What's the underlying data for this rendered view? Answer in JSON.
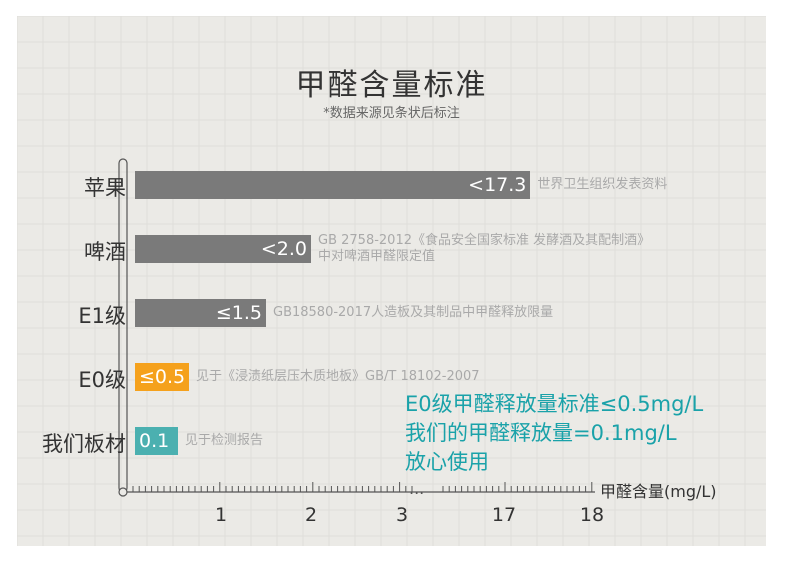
{
  "title": "甲醛含量标准",
  "subtitle": "*数据来源见条状后标注",
  "chart_data": {
    "type": "bar",
    "orientation": "horizontal",
    "categories": [
      "苹果",
      "啤酒",
      "E1级",
      "E0级",
      "我们板材"
    ],
    "values": [
      17.3,
      2.0,
      1.5,
      0.5,
      0.1
    ],
    "value_labels": [
      "<17.3",
      "<2.0",
      "≤1.5",
      "≤0.5",
      "0.1"
    ],
    "notes": [
      [
        "世界卫生组织发表资料"
      ],
      [
        "GB 2758-2012《食品安全国家标准 发酵酒及其配制酒》",
        "中对啤酒甲醛限定值"
      ],
      [
        "GB18580-2017人造板及其制品中甲醛释放限量"
      ],
      [
        "见于《浸渍纸层压木质地板》GB/T 18102-2007"
      ],
      [
        "见于检测报告"
      ]
    ],
    "bar_colors": [
      "#7a7a7a",
      "#7a7a7a",
      "#7a7a7a",
      "#f5a11c",
      "#4bb0b0"
    ],
    "xlabel": "甲醛含量(mg/L)",
    "x_ticks": [
      1,
      2,
      3,
      17,
      18
    ],
    "axis_break": "...",
    "callout": [
      "E0级甲醛释放量标准≤0.5mg/L",
      "我们的甲醛释放量=0.1mg/L",
      "放心使用"
    ]
  }
}
